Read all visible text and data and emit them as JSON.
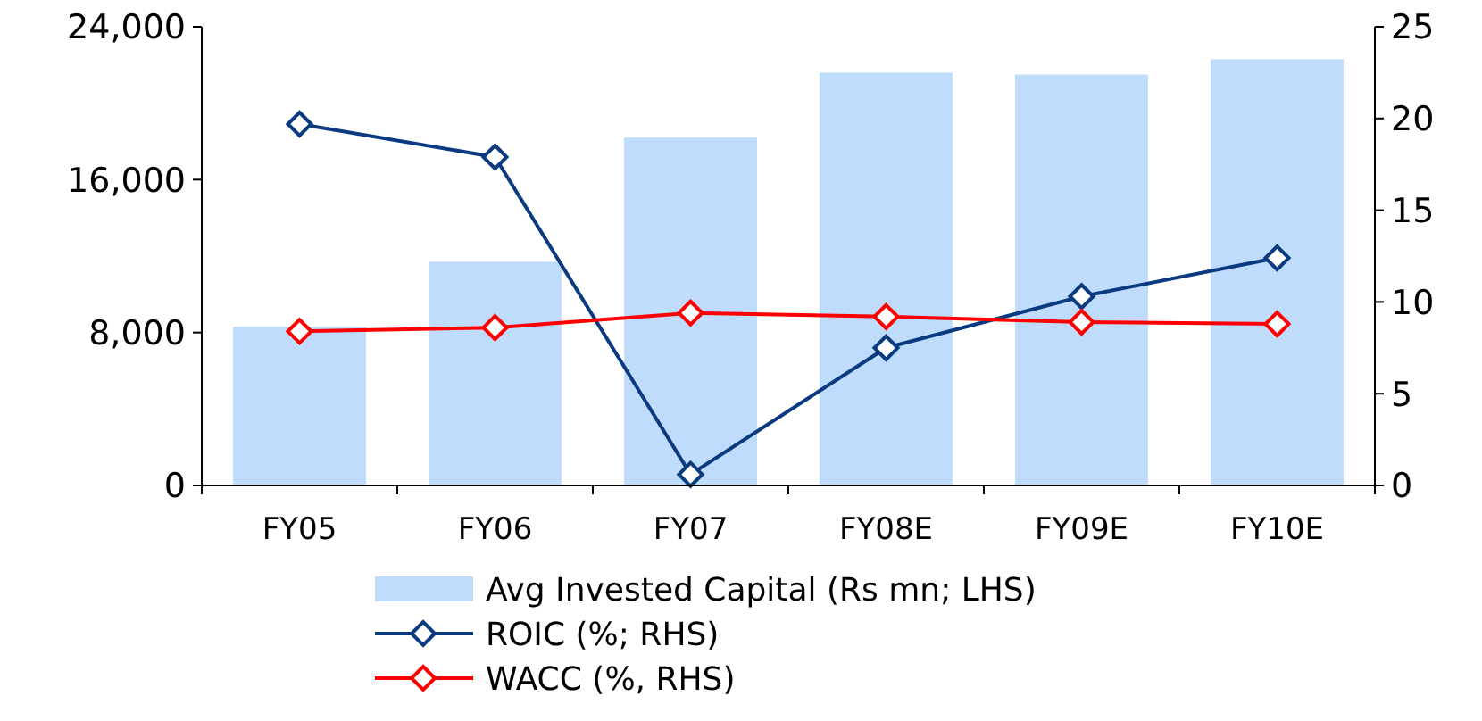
{
  "chart_data": {
    "type": "bar",
    "categories": [
      "FY05",
      "FY06",
      "FY07",
      "FY08E",
      "FY09E",
      "FY10E"
    ],
    "series": [
      {
        "name": "Avg Invested Capital (Rs mn; LHS)",
        "color": "#bfdcfc",
        "values": [
          8300,
          11700,
          18200,
          21600,
          21500,
          22300
        ]
      },
      {
        "name": "ROIC (%; RHS)",
        "type": "line",
        "axis": "y2",
        "color": "#0a3a80",
        "values": [
          19.7,
          17.9,
          0.6,
          7.5,
          10.3,
          12.4
        ]
      },
      {
        "name": "WACC (%, RHS)",
        "type": "line",
        "axis": "y2",
        "color": "#ff0000",
        "values": [
          8.4,
          8.6,
          9.4,
          9.2,
          8.9,
          8.8
        ]
      }
    ],
    "ylim": [
      0,
      24000
    ],
    "yticks": [
      {
        "value": 0,
        "label": "0"
      },
      {
        "value": 8000,
        "label": "8,000"
      },
      {
        "value": 16000,
        "label": "16,000"
      },
      {
        "value": 24000,
        "label": "24,000"
      }
    ],
    "y2lim": [
      0,
      25
    ],
    "y2ticks": [
      0,
      5,
      10,
      15,
      20,
      25
    ],
    "marker": "diamond",
    "legend": "bottom",
    "grid": false
  }
}
